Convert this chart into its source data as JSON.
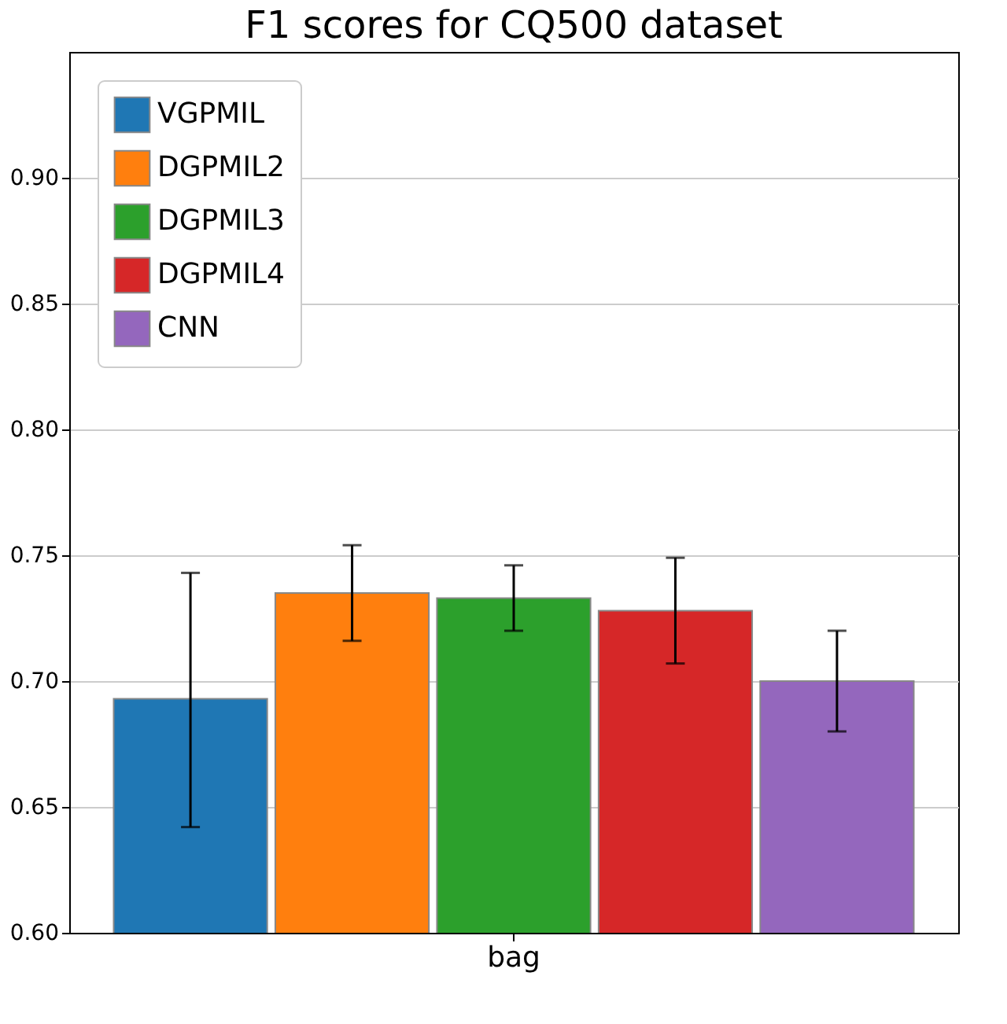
{
  "chart_data": {
    "type": "bar",
    "title": "F1 scores for CQ500 dataset",
    "categories": [
      "bag"
    ],
    "series": [
      {
        "name": "VGPMIL",
        "color": "#1f77b4",
        "values": [
          0.693
        ],
        "errors": [
          [
            0.642,
            0.743
          ]
        ]
      },
      {
        "name": "DGPMIL2",
        "color": "#ff7f0e",
        "values": [
          0.735
        ],
        "errors": [
          [
            0.716,
            0.754
          ]
        ]
      },
      {
        "name": "DGPMIL3",
        "color": "#2ca02c",
        "values": [
          0.733
        ],
        "errors": [
          [
            0.72,
            0.746
          ]
        ]
      },
      {
        "name": "DGPMIL4",
        "color": "#d62728",
        "values": [
          0.728
        ],
        "errors": [
          [
            0.707,
            0.749
          ]
        ]
      },
      {
        "name": "CNN",
        "color": "#9467bd",
        "values": [
          0.7
        ],
        "errors": [
          [
            0.68,
            0.72
          ]
        ]
      }
    ],
    "ylim": [
      0.6,
      0.95
    ],
    "yticks": [
      {
        "value": 0.6,
        "label": "0.60"
      },
      0.65,
      {
        "value": 0.7,
        "label": "0.70"
      },
      0.75,
      {
        "value": 0.8,
        "label": "0.80"
      },
      0.85,
      {
        "value": 0.9,
        "label": "0.90"
      }
    ],
    "grid": "y",
    "legend": "top left"
  }
}
